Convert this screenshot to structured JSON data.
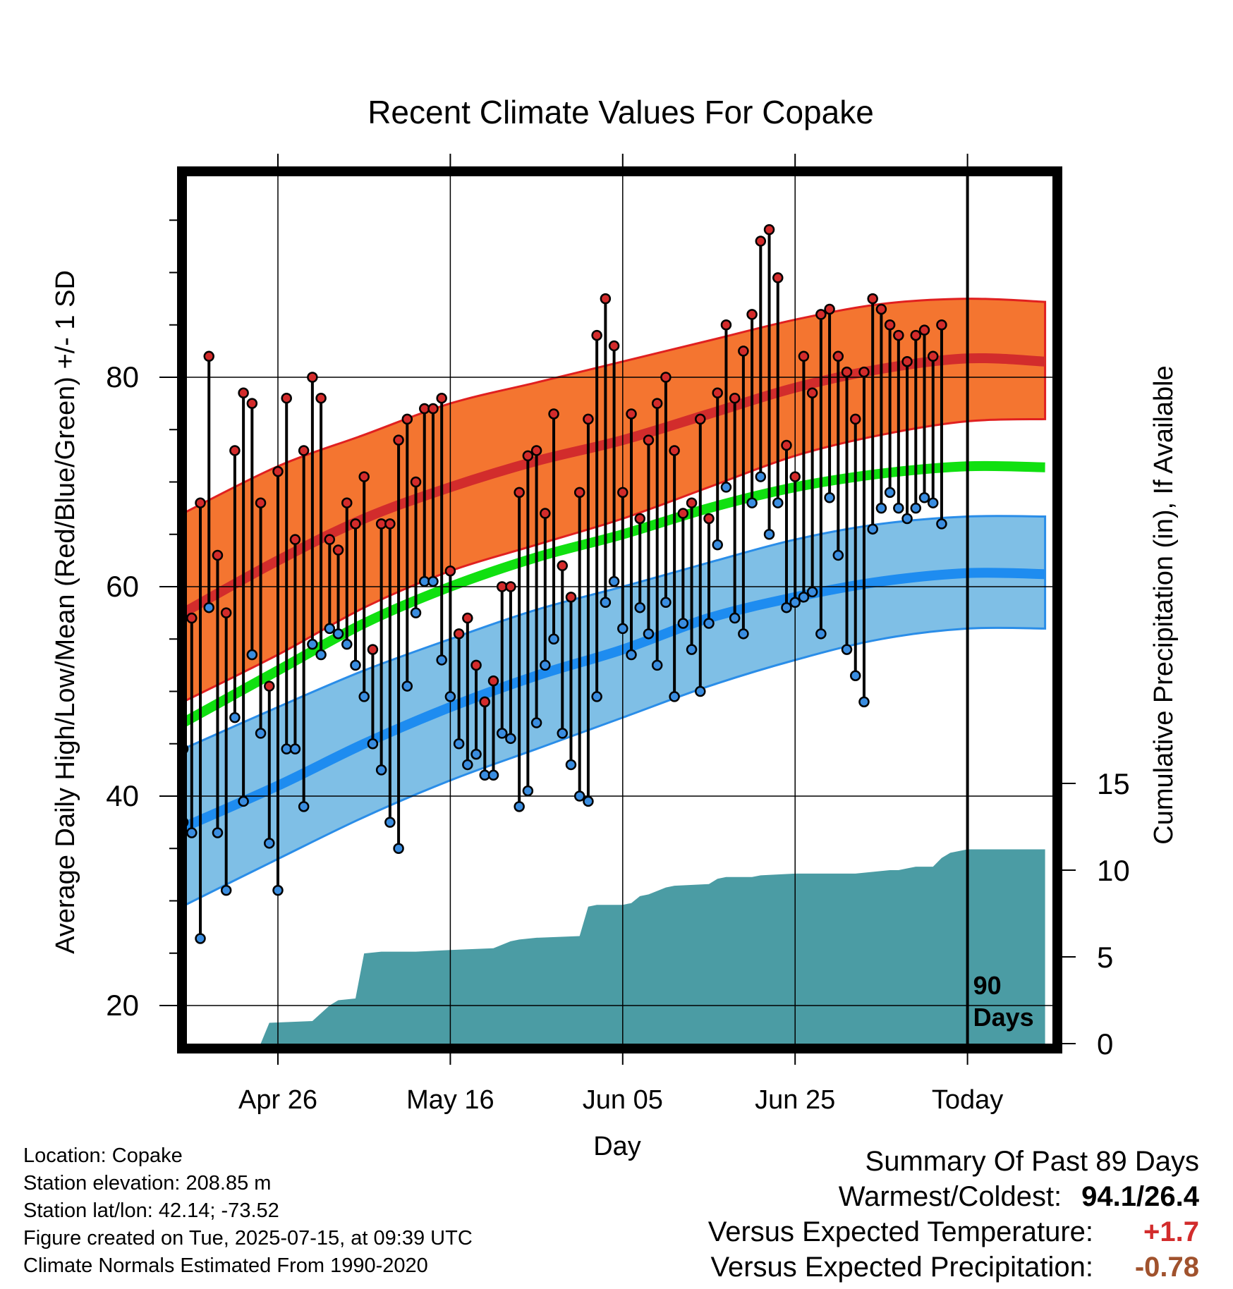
{
  "chart_data": {
    "type": "line",
    "title": "Recent Climate Values For Copake",
    "xlabel": "Day",
    "ylabel": "Average Daily High/Low/Mean (Red/Blue/Green) +/- 1 SD",
    "y2label": "Cumulative Precipitation (in), If Available",
    "xlim": [
      -12,
      90
    ],
    "ylim": [
      16,
      99
    ],
    "y2lim": [
      0,
      28
    ],
    "grid": true,
    "x_ticks": [
      {
        "x": 0,
        "label": "Apr 26"
      },
      {
        "x": 20,
        "label": "May 16"
      },
      {
        "x": 40,
        "label": "Jun 05"
      },
      {
        "x": 60,
        "label": "Jun 25"
      },
      {
        "x": 80,
        "label": "Today"
      }
    ],
    "y_ticks": [
      20,
      40,
      60,
      80
    ],
    "y2_ticks": [
      0,
      5,
      10,
      15
    ],
    "today_x": 80,
    "today_label": [
      "90",
      "Days"
    ],
    "normals": {
      "x": [
        -11,
        0,
        10,
        20,
        30,
        40,
        50,
        60,
        70,
        80,
        89
      ],
      "high_mean": [
        57.5,
        62.5,
        66.5,
        69.5,
        72,
        74,
        76.5,
        79,
        80.8,
        81.8,
        81.5
      ],
      "high_upper": [
        67,
        71.5,
        74.5,
        77.5,
        79.5,
        81.5,
        83.5,
        85.5,
        87,
        87.5,
        87.2
      ],
      "high_lower": [
        49,
        53.5,
        58,
        61.5,
        64,
        66.5,
        69.5,
        72.5,
        74.5,
        75.8,
        76
      ],
      "mean": [
        47,
        52,
        56.5,
        60,
        62.8,
        65,
        67.5,
        69.5,
        70.8,
        71.5,
        71.4
      ],
      "low_mean": [
        37,
        41,
        45,
        48.5,
        51.5,
        54,
        57,
        59,
        60.5,
        61.3,
        61.2
      ],
      "low_upper": [
        44.5,
        48.5,
        52,
        55,
        57.8,
        60,
        62.3,
        64.5,
        66,
        66.7,
        66.7
      ],
      "low_lower": [
        29.5,
        34,
        38,
        41.5,
        44.5,
        47.5,
        50.5,
        53,
        55,
        56,
        56
      ]
    },
    "daily": {
      "x_start": -11,
      "high": [
        44.5,
        57,
        68,
        82,
        63,
        57.5,
        73,
        78.5,
        77.5,
        68,
        50.5,
        71,
        78,
        64.5,
        73,
        80,
        78,
        64.5,
        63.5,
        68,
        66,
        70.5,
        54,
        66,
        66,
        74,
        76,
        70,
        77,
        77,
        78,
        61.5,
        55.5,
        57,
        52.5,
        49,
        51,
        60,
        60,
        69,
        72.5,
        73,
        67,
        76.5,
        62,
        59,
        69,
        76,
        84,
        87.5,
        83,
        69,
        76.5,
        66.5,
        74,
        77.5,
        80,
        73,
        67,
        68,
        76,
        66.5,
        78.5,
        85,
        78,
        82.5,
        86,
        93,
        94.1,
        89.5,
        73.5,
        70.5,
        82,
        78.5,
        86,
        86.5,
        82,
        80.5,
        76,
        80.5,
        87.5,
        86.5,
        85,
        84,
        81.5,
        84,
        84.5,
        82,
        85
      ],
      "low": [
        37.5,
        36.5,
        26.4,
        58,
        36.5,
        31,
        47.5,
        39.5,
        53.5,
        46,
        35.5,
        31,
        44.5,
        44.5,
        39,
        54.5,
        53.5,
        56,
        55.5,
        54.5,
        52.5,
        49.5,
        45,
        42.5,
        37.5,
        35,
        50.5,
        57.5,
        60.5,
        60.5,
        53,
        49.5,
        45,
        43,
        44,
        42,
        42,
        46,
        45.5,
        39,
        40.5,
        47,
        52.5,
        55,
        46,
        43,
        40,
        39.5,
        49.5,
        58.5,
        60.5,
        56,
        53.5,
        58,
        55.5,
        52.5,
        58.5,
        49.5,
        56.5,
        54,
        50,
        56.5,
        64,
        69.5,
        57,
        55.5,
        68,
        70.5,
        65,
        68,
        58,
        58.5,
        59,
        59.5,
        55.5,
        68.5,
        63,
        54,
        51.5,
        49,
        65.5,
        67.5,
        69,
        67.5,
        66.5,
        67.5,
        68.5,
        68,
        66
      ]
    },
    "precipitation": {
      "x": [
        -11,
        -2,
        -1,
        4,
        6,
        7,
        9,
        10,
        12,
        13,
        16,
        20,
        25,
        27,
        28,
        30,
        35,
        36,
        37,
        39,
        40,
        41,
        42,
        43,
        44,
        45,
        46,
        50,
        51,
        52,
        53,
        55,
        56,
        60,
        65,
        67,
        71,
        72,
        73,
        74,
        76,
        77,
        78,
        80,
        89
      ],
      "values": [
        0,
        0,
        1.2,
        1.3,
        2.2,
        2.5,
        2.6,
        5.2,
        5.3,
        5.3,
        5.3,
        5.4,
        5.5,
        5.9,
        6.0,
        6.1,
        6.2,
        7.9,
        8.0,
        8.0,
        8.0,
        8.1,
        8.5,
        8.6,
        8.8,
        9.0,
        9.1,
        9.2,
        9.5,
        9.6,
        9.6,
        9.6,
        9.7,
        9.8,
        9.8,
        9.8,
        10.0,
        10.0,
        10.1,
        10.2,
        10.2,
        10.7,
        11.0,
        11.2,
        11.2
      ]
    },
    "colors": {
      "high_band": "#f47530",
      "high_edge": "#e02020",
      "high_mean": "#d22c2c",
      "mean": "#10e010",
      "low_band": "#7fbfe6",
      "low_edge": "#2a8de8",
      "low_mean": "#1e8cf0",
      "precip": "#4b9ca4",
      "high_dot": "#d32b2b",
      "low_dot": "#3a8de0"
    }
  },
  "footer": {
    "location": "Location: Copake",
    "elevation": "Station elevation: 208.85 m",
    "latlon": "Station lat/lon: 42.14; -73.52",
    "created": "Figure created on Tue, 2025-07-15, at 09:39 UTC",
    "normals": "Climate Normals Estimated From 1990-2020"
  },
  "summary": {
    "heading": "Summary Of Past 89 Days",
    "extremes_label": "Warmest/Coldest:",
    "extremes_value": "94.1/26.4",
    "temp_label": "Versus Expected Temperature:",
    "temp_value": "+1.7",
    "precip_label": "Versus Expected Precipitation:",
    "precip_value": "-0.78"
  }
}
